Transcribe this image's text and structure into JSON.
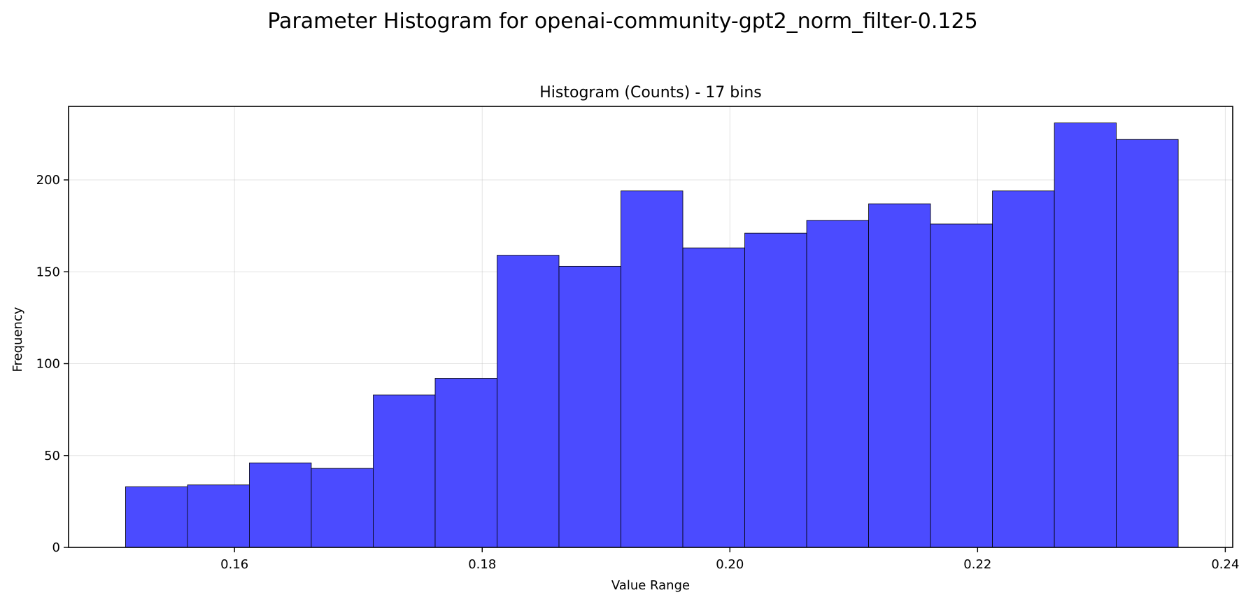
{
  "suptitle": "Parameter Histogram for openai-community-gpt2_norm_filter-0.125",
  "chart_data": {
    "type": "bar",
    "title": "Histogram (Counts) - 17 bins",
    "xlabel": "Value Range",
    "ylabel": "Frequency",
    "bar_color": "#4b4bff",
    "edge_color": "#000000",
    "grid": true,
    "xlim": [
      0.1466,
      0.2406
    ],
    "ylim": [
      0,
      240
    ],
    "bin_edges": [
      0.1512,
      0.1562,
      0.1612,
      0.1662,
      0.1712,
      0.1762,
      0.1812,
      0.1862,
      0.1912,
      0.1962,
      0.2012,
      0.2062,
      0.2112,
      0.2162,
      0.2212,
      0.2262,
      0.2312,
      0.2362
    ],
    "values": [
      33,
      34,
      46,
      43,
      83,
      92,
      159,
      153,
      194,
      163,
      171,
      178,
      187,
      176,
      194,
      231,
      222
    ],
    "x_ticks": [
      {
        "value": 0.16,
        "label": "0.16"
      },
      {
        "value": 0.18,
        "label": "0.18"
      },
      {
        "value": 0.2,
        "label": "0.20"
      },
      {
        "value": 0.22,
        "label": "0.22"
      },
      {
        "value": 0.24,
        "label": "0.24"
      }
    ],
    "y_ticks": [
      {
        "value": 0,
        "label": "0"
      },
      {
        "value": 50,
        "label": "50"
      },
      {
        "value": 100,
        "label": "100"
      },
      {
        "value": 150,
        "label": "150"
      },
      {
        "value": 200,
        "label": "200"
      }
    ]
  }
}
